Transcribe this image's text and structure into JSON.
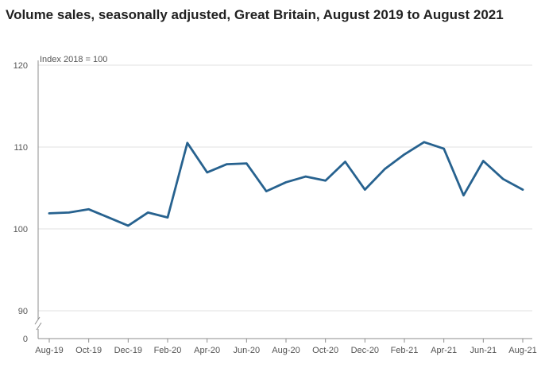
{
  "title": "Volume sales, seasonally adjusted, Great Britain, August 2019 to August 2021",
  "colors": {
    "line": "#27628f",
    "grid": "#e2e2e2",
    "axis": "#8e8e8e",
    "text": "#555555"
  },
  "chart_data": {
    "type": "line",
    "title": "Volume sales, seasonally adjusted, Great Britain, August 2019 to August 2021",
    "units_label": "Index 2018 = 100",
    "xlabel": "",
    "ylabel": "",
    "axis_break": true,
    "y_ticks": [
      0,
      90,
      100,
      110,
      120
    ],
    "y_range_above_break": [
      90,
      120
    ],
    "x_tick_labels": [
      "Aug-19",
      "Oct-19",
      "Dec-19",
      "Feb-20",
      "Apr-20",
      "Jun-20",
      "Aug-20",
      "Oct-20",
      "Dec-20",
      "Feb-21",
      "Apr-21",
      "Jun-21",
      "Aug-21"
    ],
    "x": [
      "Aug-19",
      "Sep-19",
      "Oct-19",
      "Nov-19",
      "Dec-19",
      "Jan-20",
      "Feb-20",
      "Mar-20",
      "Apr-20",
      "May-20",
      "Jun-20",
      "Jul-20",
      "Aug-20",
      "Sep-20",
      "Oct-20",
      "Nov-20",
      "Dec-20",
      "Jan-21",
      "Feb-21",
      "Mar-21",
      "Apr-21",
      "May-21",
      "Jun-21",
      "Jul-21",
      "Aug-21"
    ],
    "series": [
      {
        "name": "Volume sales",
        "values": [
          101.9,
          102.0,
          102.4,
          101.4,
          100.4,
          102.0,
          101.4,
          110.5,
          106.9,
          107.9,
          108.0,
          104.6,
          105.7,
          106.4,
          105.9,
          108.2,
          104.8,
          107.3,
          109.1,
          110.6,
          109.8,
          104.1,
          108.3,
          106.1,
          104.8
        ]
      }
    ],
    "grid": true,
    "legend": "none"
  }
}
